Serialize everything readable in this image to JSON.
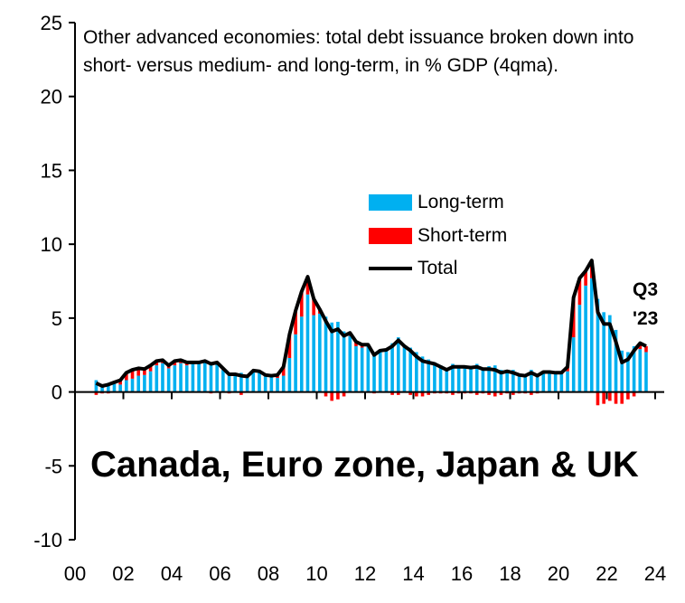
{
  "chart_data": {
    "type": "bar",
    "title": "Other advanced economies: total debt issuance broken down into short- versus medium- and long-term, in % GDP (4qma).",
    "annotation_big": "Canada, Euro zone, Japan & UK",
    "annotation_last": [
      "Q3",
      "'23"
    ],
    "ylim": [
      -10,
      25
    ],
    "yticks": [
      "-10",
      "-5",
      "0",
      "5",
      "10",
      "15",
      "20",
      "25"
    ],
    "xticks": [
      "00",
      "02",
      "04",
      "06",
      "08",
      "10",
      "12",
      "14",
      "16",
      "18",
      "20",
      "22",
      "24"
    ],
    "xlim": [
      2000,
      2024
    ],
    "start_quarter": "2000Q4",
    "legend_position": "center",
    "colors": {
      "long": "#00B0F0",
      "short": "#FF0000",
      "total": "#000000"
    },
    "series": [
      {
        "name": "Long-term",
        "kind": "bar"
      },
      {
        "name": "Short-term",
        "kind": "bar",
        "values": [
          -0.2,
          -0.1,
          -0.1,
          0.1,
          0.3,
          0.5,
          0.6,
          0.5,
          0.4,
          0.4,
          0.3,
          0.2,
          0.2,
          0.3,
          0.2,
          0.2,
          0.1,
          0.1,
          0.1,
          -0.1,
          0.1,
          0.1,
          -0.1,
          0.0,
          -0.2,
          0.0,
          0.1,
          0.1,
          0.1,
          0.1,
          0.2,
          0.6,
          1.6,
          1.6,
          1.7,
          1.2,
          1.1,
          0.3,
          -0.3,
          -0.6,
          -0.5,
          -0.3,
          0.2,
          0.3,
          0.2,
          0.1,
          -0.1,
          0.1,
          0.0,
          -0.2,
          -0.2,
          0.1,
          -0.2,
          -0.3,
          -0.3,
          -0.2,
          -0.1,
          -0.1,
          -0.1,
          -0.2,
          -0.1,
          -0.1,
          -0.1,
          -0.2,
          -0.1,
          -0.2,
          -0.3,
          -0.2,
          -0.1,
          -0.2,
          -0.1,
          -0.1,
          -0.2,
          -0.1,
          0.1,
          0.1,
          0.1,
          0.1,
          0.3,
          2.7,
          1.8,
          1.0,
          1.2,
          -0.9,
          -0.8,
          -0.6,
          -0.8,
          -0.8,
          -0.5,
          -0.3,
          0.4,
          0.4
        ]
      },
      {
        "name": "Total",
        "kind": "line",
        "values": [
          0.6,
          0.4,
          0.5,
          0.65,
          0.8,
          1.3,
          1.5,
          1.6,
          1.55,
          1.8,
          2.1,
          2.15,
          1.8,
          2.1,
          2.15,
          2.0,
          2.0,
          2.0,
          2.1,
          1.9,
          2.0,
          1.6,
          1.2,
          1.2,
          1.1,
          1.05,
          1.45,
          1.4,
          1.15,
          1.1,
          1.15,
          1.7,
          3.9,
          5.5,
          6.8,
          7.8,
          6.3,
          5.6,
          4.8,
          4.1,
          4.25,
          3.8,
          4.0,
          3.4,
          3.2,
          3.2,
          2.5,
          2.8,
          2.85,
          3.1,
          3.5,
          3.1,
          2.8,
          2.4,
          2.1,
          2.0,
          1.9,
          1.7,
          1.5,
          1.7,
          1.7,
          1.7,
          1.65,
          1.7,
          1.55,
          1.55,
          1.5,
          1.3,
          1.4,
          1.3,
          1.15,
          1.1,
          1.3,
          1.1,
          1.35,
          1.35,
          1.3,
          1.3,
          1.7,
          6.4,
          7.7,
          8.2,
          8.9,
          5.4,
          4.6,
          4.6,
          3.4,
          2.0,
          2.2,
          2.8,
          3.3,
          3.1
        ]
      }
    ]
  }
}
